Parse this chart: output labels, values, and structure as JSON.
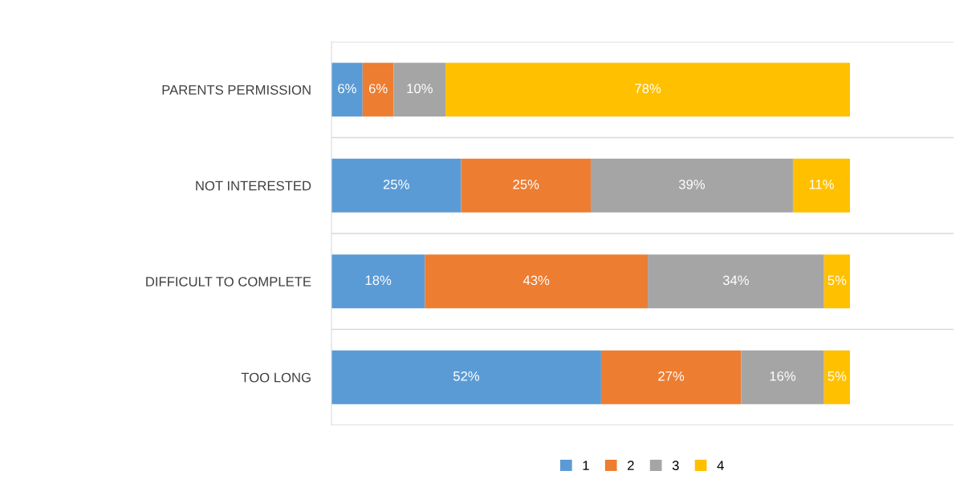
{
  "chart_data": {
    "type": "bar",
    "orientation": "horizontal",
    "stacked": true,
    "categories": [
      "PARENTS PERMISSION",
      "NOT INTERESTED",
      "DIFFICULT TO COMPLETE",
      "TOO LONG"
    ],
    "series": [
      {
        "name": "1",
        "color": "#5b9bd5",
        "values": [
          6,
          25,
          18,
          52
        ],
        "value_labels": [
          "6%",
          "25%",
          "18%",
          "52%"
        ]
      },
      {
        "name": "2",
        "color": "#ed7d31",
        "values": [
          6,
          25,
          43,
          27
        ],
        "value_labels": [
          "6%",
          "25%",
          "43%",
          "27%"
        ]
      },
      {
        "name": "3",
        "color": "#a5a5a5",
        "values": [
          10,
          39,
          34,
          16
        ],
        "value_labels": [
          "10%",
          "39%",
          "34%",
          "16%"
        ]
      },
      {
        "name": "4",
        "color": "#ffc000",
        "values": [
          78,
          11,
          5,
          5
        ],
        "value_labels": [
          "78%",
          "11%",
          "5%",
          "5%"
        ]
      }
    ],
    "legend": "bottom"
  }
}
